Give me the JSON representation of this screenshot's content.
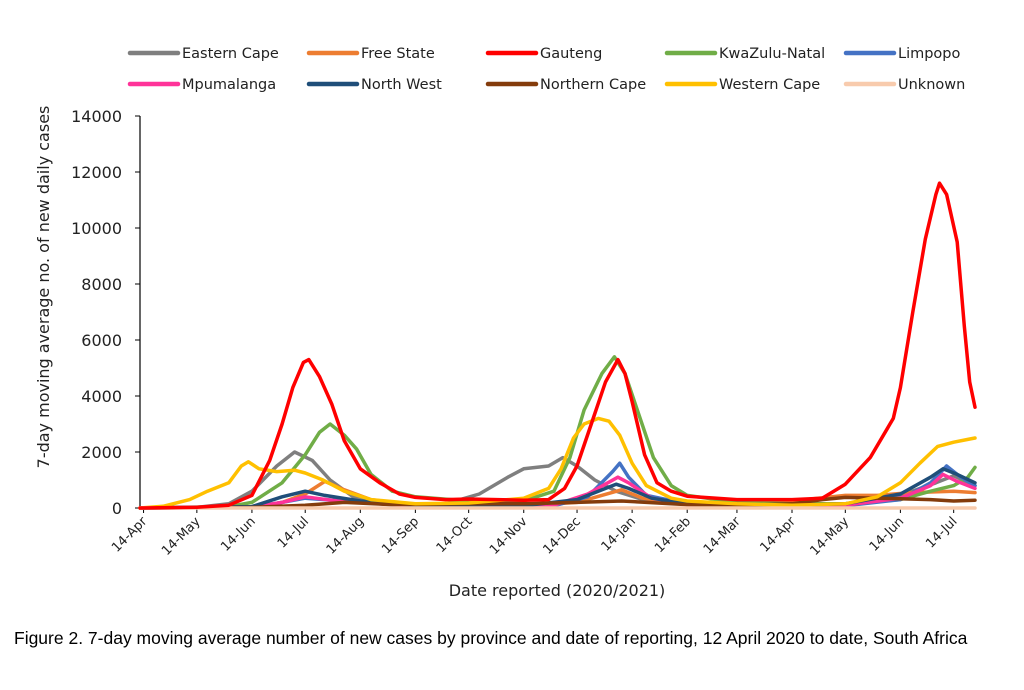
{
  "chart_data": {
    "type": "line",
    "title": "",
    "xlabel": "Date reported (2020/2021)",
    "ylabel": "7-day moving average no. of new daily cases",
    "ylim": [
      0,
      14000
    ],
    "yticks": [
      0,
      2000,
      4000,
      6000,
      8000,
      10000,
      12000,
      14000
    ],
    "xlim": [
      "2020-04-12",
      "2021-07-26"
    ],
    "xticks": [
      {
        "label": "14-Apr",
        "date": "2020-04-14"
      },
      {
        "label": "14-May",
        "date": "2020-05-14"
      },
      {
        "label": "14-Jun",
        "date": "2020-06-14"
      },
      {
        "label": "14-Jul",
        "date": "2020-07-14"
      },
      {
        "label": "14-Aug",
        "date": "2020-08-14"
      },
      {
        "label": "14-Sep",
        "date": "2020-09-14"
      },
      {
        "label": "14-Oct",
        "date": "2020-10-14"
      },
      {
        "label": "14-Nov",
        "date": "2020-11-14"
      },
      {
        "label": "14-Dec",
        "date": "2020-12-14"
      },
      {
        "label": "14-Jan",
        "date": "2021-01-14"
      },
      {
        "label": "14-Feb",
        "date": "2021-02-14"
      },
      {
        "label": "14-Mar",
        "date": "2021-03-14"
      },
      {
        "label": "14-Apr",
        "date": "2021-04-14"
      },
      {
        "label": "14-May",
        "date": "2021-05-14"
      },
      {
        "label": "14-Jun",
        "date": "2021-06-14"
      },
      {
        "label": "14-Jul",
        "date": "2021-07-14"
      }
    ],
    "grid": false,
    "legend_position": "top",
    "series": [
      {
        "name": "Eastern Cape",
        "color": "#7f7f7f",
        "points": [
          [
            "2020-04-12",
            0
          ],
          [
            "2020-05-14",
            20
          ],
          [
            "2020-06-01",
            150
          ],
          [
            "2020-06-14",
            600
          ],
          [
            "2020-06-28",
            1500
          ],
          [
            "2020-07-08",
            2000
          ],
          [
            "2020-07-18",
            1700
          ],
          [
            "2020-07-28",
            1000
          ],
          [
            "2020-08-10",
            400
          ],
          [
            "2020-09-01",
            150
          ],
          [
            "2020-10-01",
            150
          ],
          [
            "2020-10-20",
            500
          ],
          [
            "2020-11-05",
            1100
          ],
          [
            "2020-11-14",
            1400
          ],
          [
            "2020-11-28",
            1500
          ],
          [
            "2020-12-06",
            1800
          ],
          [
            "2020-12-14",
            1500
          ],
          [
            "2020-12-24",
            1000
          ],
          [
            "2021-01-05",
            600
          ],
          [
            "2021-01-20",
            300
          ],
          [
            "2021-02-14",
            150
          ],
          [
            "2021-04-14",
            100
          ],
          [
            "2021-05-14",
            150
          ],
          [
            "2021-06-14",
            450
          ],
          [
            "2021-07-04",
            900
          ],
          [
            "2021-07-14",
            1150
          ],
          [
            "2021-07-26",
            800
          ]
        ]
      },
      {
        "name": "Free State",
        "color": "#ed7d31",
        "points": [
          [
            "2020-04-12",
            0
          ],
          [
            "2020-06-14",
            30
          ],
          [
            "2020-07-01",
            200
          ],
          [
            "2020-07-14",
            500
          ],
          [
            "2020-07-25",
            950
          ],
          [
            "2020-08-05",
            650
          ],
          [
            "2020-08-20",
            300
          ],
          [
            "2020-09-14",
            100
          ],
          [
            "2020-11-14",
            80
          ],
          [
            "2020-12-14",
            200
          ],
          [
            "2021-01-08",
            650
          ],
          [
            "2021-01-20",
            350
          ],
          [
            "2021-02-14",
            150
          ],
          [
            "2021-03-14",
            150
          ],
          [
            "2021-04-14",
            250
          ],
          [
            "2021-05-14",
            450
          ],
          [
            "2021-06-01",
            450
          ],
          [
            "2021-06-20",
            550
          ],
          [
            "2021-07-14",
            600
          ],
          [
            "2021-07-26",
            550
          ]
        ]
      },
      {
        "name": "Gauteng",
        "color": "#ff0000",
        "points": [
          [
            "2020-04-12",
            0
          ],
          [
            "2020-05-14",
            30
          ],
          [
            "2020-06-01",
            100
          ],
          [
            "2020-06-14",
            450
          ],
          [
            "2020-06-24",
            1700
          ],
          [
            "2020-07-01",
            3000
          ],
          [
            "2020-07-07",
            4300
          ],
          [
            "2020-07-13",
            5200
          ],
          [
            "2020-07-16",
            5300
          ],
          [
            "2020-07-22",
            4700
          ],
          [
            "2020-07-29",
            3700
          ],
          [
            "2020-08-05",
            2400
          ],
          [
            "2020-08-14",
            1400
          ],
          [
            "2020-08-25",
            900
          ],
          [
            "2020-09-05",
            500
          ],
          [
            "2020-09-14",
            380
          ],
          [
            "2020-10-01",
            300
          ],
          [
            "2020-10-14",
            320
          ],
          [
            "2020-11-14",
            280
          ],
          [
            "2020-11-28",
            300
          ],
          [
            "2020-12-07",
            700
          ],
          [
            "2020-12-14",
            1500
          ],
          [
            "2020-12-22",
            3000
          ],
          [
            "2020-12-30",
            4500
          ],
          [
            "2021-01-06",
            5300
          ],
          [
            "2021-01-10",
            4800
          ],
          [
            "2021-01-14",
            3800
          ],
          [
            "2021-01-21",
            1900
          ],
          [
            "2021-01-28",
            900
          ],
          [
            "2021-02-05",
            600
          ],
          [
            "2021-02-14",
            420
          ],
          [
            "2021-03-14",
            300
          ],
          [
            "2021-04-14",
            300
          ],
          [
            "2021-05-01",
            350
          ],
          [
            "2021-05-14",
            850
          ],
          [
            "2021-05-28",
            1800
          ],
          [
            "2021-06-10",
            3200
          ],
          [
            "2021-06-14",
            4300
          ],
          [
            "2021-06-21",
            7000
          ],
          [
            "2021-06-28",
            9600
          ],
          [
            "2021-07-04",
            11200
          ],
          [
            "2021-07-06",
            11600
          ],
          [
            "2021-07-10",
            11200
          ],
          [
            "2021-07-16",
            9500
          ],
          [
            "2021-07-20",
            6500
          ],
          [
            "2021-07-23",
            4500
          ],
          [
            "2021-07-26",
            3600
          ]
        ]
      },
      {
        "name": "KwaZulu-Natal",
        "color": "#70ad47",
        "points": [
          [
            "2020-04-12",
            0
          ],
          [
            "2020-06-01",
            50
          ],
          [
            "2020-06-14",
            200
          ],
          [
            "2020-07-01",
            900
          ],
          [
            "2020-07-14",
            1900
          ],
          [
            "2020-07-22",
            2700
          ],
          [
            "2020-07-28",
            3000
          ],
          [
            "2020-08-05",
            2600
          ],
          [
            "2020-08-12",
            2100
          ],
          [
            "2020-08-20",
            1200
          ],
          [
            "2020-09-01",
            600
          ],
          [
            "2020-09-14",
            400
          ],
          [
            "2020-10-14",
            250
          ],
          [
            "2020-11-14",
            250
          ],
          [
            "2020-12-01",
            600
          ],
          [
            "2020-12-10",
            1800
          ],
          [
            "2020-12-18",
            3500
          ],
          [
            "2020-12-28",
            4800
          ],
          [
            "2021-01-04",
            5400
          ],
          [
            "2021-01-10",
            4800
          ],
          [
            "2021-01-18",
            3300
          ],
          [
            "2021-01-26",
            1800
          ],
          [
            "2021-02-05",
            800
          ],
          [
            "2021-02-14",
            450
          ],
          [
            "2021-03-14",
            200
          ],
          [
            "2021-04-14",
            150
          ],
          [
            "2021-05-14",
            150
          ],
          [
            "2021-06-14",
            300
          ],
          [
            "2021-07-01",
            600
          ],
          [
            "2021-07-14",
            800
          ],
          [
            "2021-07-22",
            1100
          ],
          [
            "2021-07-26",
            1450
          ]
        ]
      },
      {
        "name": "Limpopo",
        "color": "#4472c4",
        "points": [
          [
            "2020-04-12",
            0
          ],
          [
            "2020-06-14",
            20
          ],
          [
            "2020-07-01",
            200
          ],
          [
            "2020-07-14",
            350
          ],
          [
            "2020-08-05",
            250
          ],
          [
            "2020-09-14",
            50
          ],
          [
            "2020-12-01",
            80
          ],
          [
            "2020-12-20",
            400
          ],
          [
            "2021-01-03",
            1300
          ],
          [
            "2021-01-07",
            1600
          ],
          [
            "2021-01-12",
            1100
          ],
          [
            "2021-01-22",
            450
          ],
          [
            "2021-02-14",
            150
          ],
          [
            "2021-04-14",
            50
          ],
          [
            "2021-05-14",
            80
          ],
          [
            "2021-06-14",
            300
          ],
          [
            "2021-07-01",
            900
          ],
          [
            "2021-07-10",
            1500
          ],
          [
            "2021-07-18",
            1100
          ],
          [
            "2021-07-26",
            800
          ]
        ]
      },
      {
        "name": "Mpumalanga",
        "color": "#ff3399",
        "points": [
          [
            "2020-04-12",
            0
          ],
          [
            "2020-06-14",
            30
          ],
          [
            "2020-07-01",
            200
          ],
          [
            "2020-07-14",
            400
          ],
          [
            "2020-08-01",
            250
          ],
          [
            "2020-09-14",
            80
          ],
          [
            "2020-12-01",
            100
          ],
          [
            "2020-12-20",
            500
          ],
          [
            "2021-01-06",
            1100
          ],
          [
            "2021-01-12",
            900
          ],
          [
            "2021-01-25",
            350
          ],
          [
            "2021-02-14",
            120
          ],
          [
            "2021-04-14",
            60
          ],
          [
            "2021-05-14",
            100
          ],
          [
            "2021-06-14",
            350
          ],
          [
            "2021-07-01",
            800
          ],
          [
            "2021-07-08",
            1200
          ],
          [
            "2021-07-16",
            950
          ],
          [
            "2021-07-26",
            700
          ]
        ]
      },
      {
        "name": "North West",
        "color": "#1f4e79",
        "points": [
          [
            "2020-04-12",
            0
          ],
          [
            "2020-06-14",
            50
          ],
          [
            "2020-07-01",
            400
          ],
          [
            "2020-07-14",
            600
          ],
          [
            "2020-07-25",
            450
          ],
          [
            "2020-08-14",
            250
          ],
          [
            "2020-09-14",
            100
          ],
          [
            "2020-11-14",
            80
          ],
          [
            "2020-12-14",
            300
          ],
          [
            "2021-01-05",
            850
          ],
          [
            "2021-01-12",
            700
          ],
          [
            "2021-01-25",
            350
          ],
          [
            "2021-02-14",
            150
          ],
          [
            "2021-04-14",
            100
          ],
          [
            "2021-05-14",
            150
          ],
          [
            "2021-06-14",
            500
          ],
          [
            "2021-07-01",
            1100
          ],
          [
            "2021-07-08",
            1400
          ],
          [
            "2021-07-16",
            1200
          ],
          [
            "2021-07-26",
            900
          ]
        ]
      },
      {
        "name": "Northern Cape",
        "color": "#843c0c",
        "points": [
          [
            "2020-04-12",
            0
          ],
          [
            "2020-06-14",
            20
          ],
          [
            "2020-07-14",
            100
          ],
          [
            "2020-08-05",
            200
          ],
          [
            "2020-09-01",
            120
          ],
          [
            "2020-10-14",
            150
          ],
          [
            "2020-11-14",
            150
          ],
          [
            "2020-12-14",
            200
          ],
          [
            "2021-01-08",
            250
          ],
          [
            "2021-02-14",
            120
          ],
          [
            "2021-03-14",
            100
          ],
          [
            "2021-04-14",
            150
          ],
          [
            "2021-05-01",
            300
          ],
          [
            "2021-05-14",
            380
          ],
          [
            "2021-06-01",
            350
          ],
          [
            "2021-06-14",
            330
          ],
          [
            "2021-07-01",
            300
          ],
          [
            "2021-07-14",
            250
          ],
          [
            "2021-07-26",
            280
          ]
        ]
      },
      {
        "name": "Western Cape",
        "color": "#ffc000",
        "points": [
          [
            "2020-04-12",
            0
          ],
          [
            "2020-04-25",
            60
          ],
          [
            "2020-05-10",
            300
          ],
          [
            "2020-05-20",
            600
          ],
          [
            "2020-06-01",
            900
          ],
          [
            "2020-06-08",
            1500
          ],
          [
            "2020-06-12",
            1650
          ],
          [
            "2020-06-18",
            1400
          ],
          [
            "2020-06-28",
            1300
          ],
          [
            "2020-07-08",
            1350
          ],
          [
            "2020-07-14",
            1250
          ],
          [
            "2020-07-24",
            1000
          ],
          [
            "2020-08-05",
            600
          ],
          [
            "2020-08-20",
            300
          ],
          [
            "2020-09-14",
            150
          ],
          [
            "2020-10-14",
            180
          ],
          [
            "2020-11-14",
            350
          ],
          [
            "2020-11-28",
            700
          ],
          [
            "2020-12-05",
            1400
          ],
          [
            "2020-12-12",
            2500
          ],
          [
            "2020-12-18",
            3000
          ],
          [
            "2020-12-26",
            3200
          ],
          [
            "2021-01-01",
            3100
          ],
          [
            "2021-01-07",
            2600
          ],
          [
            "2021-01-14",
            1600
          ],
          [
            "2021-01-22",
            800
          ],
          [
            "2021-02-05",
            350
          ],
          [
            "2021-02-14",
            250
          ],
          [
            "2021-03-14",
            150
          ],
          [
            "2021-04-14",
            100
          ],
          [
            "2021-05-14",
            150
          ],
          [
            "2021-06-01",
            400
          ],
          [
            "2021-06-14",
            900
          ],
          [
            "2021-06-25",
            1600
          ],
          [
            "2021-07-05",
            2200
          ],
          [
            "2021-07-14",
            2350
          ],
          [
            "2021-07-22",
            2450
          ],
          [
            "2021-07-26",
            2500
          ]
        ]
      },
      {
        "name": "Unknown",
        "color": "#f8cbad",
        "points": [
          [
            "2020-04-12",
            0
          ],
          [
            "2021-07-26",
            0
          ]
        ]
      }
    ]
  },
  "caption": "Figure 2. 7-day moving average number of new cases by province and date of reporting, 12 April 2020 to date, South Africa"
}
